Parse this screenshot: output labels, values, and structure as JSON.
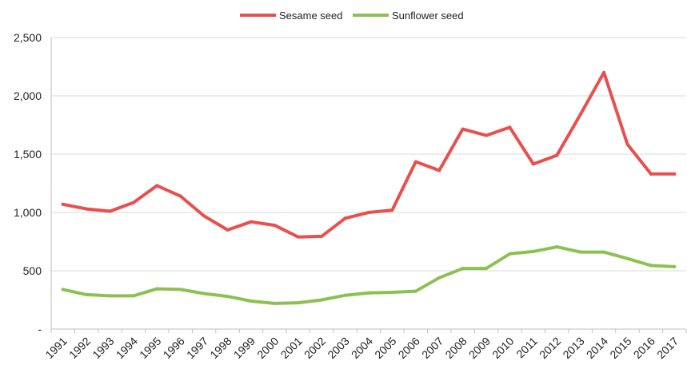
{
  "chart_data": {
    "type": "line",
    "title": "",
    "xlabel": "",
    "ylabel": "",
    "ylim": [
      0,
      2500
    ],
    "grid": true,
    "legend_position": "top-center",
    "categories": [
      "1991",
      "1992",
      "1993",
      "1994",
      "1995",
      "1996",
      "1997",
      "1998",
      "1999",
      "2000",
      "2001",
      "2002",
      "2003",
      "2004",
      "2005",
      "2006",
      "2007",
      "2008",
      "2009",
      "2010",
      "2011",
      "2012",
      "2013",
      "2014",
      "2015",
      "2016",
      "2017"
    ],
    "y_tick_labels": [
      "-",
      "500",
      "1,000",
      "1,500",
      "2,000",
      "2,500"
    ],
    "y_tick_values": [
      0,
      500,
      1000,
      1500,
      2000,
      2500
    ],
    "series": [
      {
        "name": "Sesame seed",
        "color": "#e8504f",
        "values": [
          1070,
          1030,
          1010,
          1085,
          1230,
          1140,
          970,
          850,
          920,
          890,
          790,
          795,
          950,
          1000,
          1020,
          1435,
          1360,
          1715,
          1660,
          1730,
          1415,
          1490,
          1840,
          2200,
          1585,
          1330,
          1330
        ]
      },
      {
        "name": "Sunflower seed",
        "color": "#8cc152",
        "values": [
          340,
          295,
          285,
          285,
          345,
          340,
          305,
          280,
          240,
          220,
          225,
          250,
          290,
          310,
          315,
          325,
          440,
          520,
          520,
          645,
          665,
          705,
          660,
          660,
          605,
          545,
          535
        ]
      }
    ]
  }
}
